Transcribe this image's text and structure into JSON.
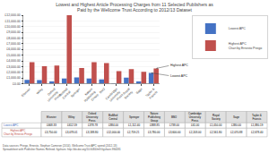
{
  "chart_data": [
    {
      "type": "bar",
      "title": "Lowest and Highest Article Processing Charges from 11 Selected Publishers as\nPaid by the Wellcome Trust According to 2012/13 Dataset",
      "categories": [
        "Elsevier",
        "Wiley",
        "Oxford\nUniversity\nPress",
        "BioMed\nCentral",
        "Springer",
        "Nature\nPublishing\nGroup",
        "BMJ",
        "Cambridge\nUniversity\nPress",
        "Royal\nSociety",
        "Sage",
        "Taylor &\nFrancis"
      ],
      "series": [
        {
          "name": "Lowest APC",
          "color": "#4472C4",
          "values": [
            668.33,
            612.59,
            378.78,
            884.0,
            1112.4,
            888.85,
            738.0,
            61.0,
            1050.0,
            380.0,
            1880.19
          ]
        },
        {
          "name": "Highest APC\nChart by Ernesto Priego",
          "color": "#C0504D",
          "values": [
            3750.0,
            3078.01,
            3188.8,
            12000.0,
            2759.21,
            3780.0,
            3600.0,
            2203.0,
            2561.8,
            2070.88,
            2678.4
          ]
        }
      ],
      "ylim": [
        0,
        12000
      ],
      "yticks": [
        {
          "value": 0,
          "label": "£0.00"
        },
        {
          "value": 1000,
          "label": "£1,000.00"
        },
        {
          "value": 2000,
          "label": "£2,000.00"
        },
        {
          "value": 3000,
          "label": "£3,000.00"
        },
        {
          "value": 4000,
          "label": "£4,000.00"
        },
        {
          "value": 5000,
          "label": "£5,000.00"
        },
        {
          "value": 6000,
          "label": "£6,000.00"
        },
        {
          "value": 7000,
          "label": "£7,000.00"
        },
        {
          "value": 8000,
          "label": "£8,000.00"
        },
        {
          "value": 9000,
          "label": "£9,000.00"
        },
        {
          "value": 10000,
          "label": "£10,000.00"
        },
        {
          "value": 11000,
          "label": "£11,000.00"
        },
        {
          "value": 12000,
          "label": "£12,000.00"
        }
      ],
      "grid": true,
      "legend": "right",
      "annotations": [
        {
          "text": "Highest APC",
          "category": "Taylor &\nFrancis",
          "series": "Highest APC\nChart by Ernesto Priego",
          "y": 2678.4
        },
        {
          "text": "Lowest APC",
          "category": "Taylor &\nFrancis",
          "series": "Lowest APC",
          "y": 1880.19
        }
      ]
    },
    {
      "type": "table",
      "categories": [
        "Elsevier",
        "Wiley",
        "Oxford University Press",
        "BioMed Central",
        "Springer",
        "Nature Publishing Group",
        "BMJ",
        "Cambridge University Press",
        "Royal Society",
        "Sage",
        "Taylor & Francis"
      ],
      "series": [
        {
          "name": "Lowest APC",
          "color": "#4472C4",
          "values": [
            668.33,
            612.59,
            378.78,
            884.0,
            1112.4,
            888.85,
            738.0,
            61.0,
            1050.0,
            380.0,
            1880.19
          ],
          "value_labels": [
            "£668.33",
            "£612.59",
            "£378.78",
            "£884.00",
            "£1,112.40",
            "£888.85",
            "£738.00",
            "£61.00",
            "£1,050.00",
            "£380.00",
            "£1,880.19"
          ]
        },
        {
          "name": "Highest APC\nChart by Ernesto Priego",
          "color": "#C0504D",
          "values": [
            3750.0,
            3078.01,
            3188.8,
            12000.0,
            2759.21,
            3780.0,
            3600.0,
            2203.0,
            2561.8,
            2070.88,
            2678.4
          ],
          "value_labels": [
            "£3,750.00",
            "£3,078.01",
            "£3,188.80",
            "£12,000.00",
            "£2,759.21",
            "£3,780.00",
            "£3,600.00",
            "£2,203.00",
            "£2,561.80",
            "£2,070.88",
            "£2,678.40"
          ]
        }
      ],
      "footer": "Data sources: Priego, Ernesto, Stephan Cameron (2014). Wellcome Trust APC spend (2012-13) Spreadsheet with Publisher Names Refined. figshare. http://dx.doi.org/10.6084/m9.figshare.994491"
    }
  ]
}
